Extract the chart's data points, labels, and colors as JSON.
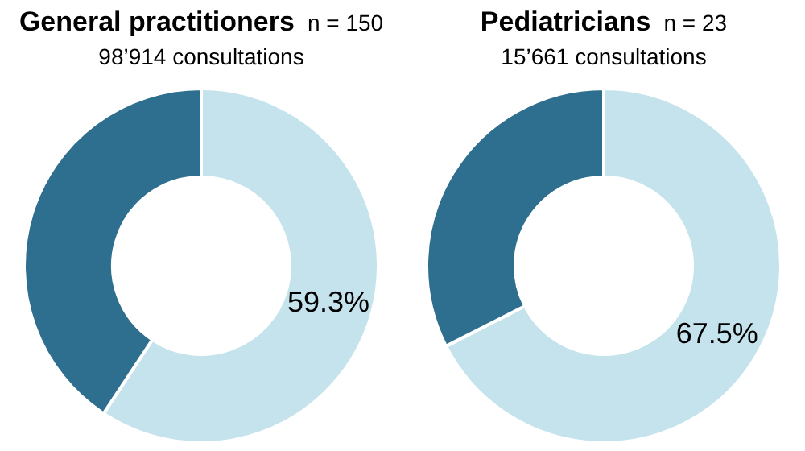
{
  "chart_data": [
    {
      "type": "donut",
      "title": "General practitioners",
      "subtitle": "n = 150",
      "annotations": [
        "98’914 consultations"
      ],
      "categories": [
        null,
        null
      ],
      "values": [
        59.3,
        40.7
      ],
      "colors": [
        "#c5e3ec",
        "#2e6e8e"
      ],
      "value_labels": [
        "59.3%",
        null
      ],
      "legend": false
    },
    {
      "type": "donut",
      "title": "Pediatricians",
      "subtitle": "n = 23",
      "annotations": [
        "15’661 consultations"
      ],
      "categories": [
        null,
        null
      ],
      "values": [
        67.5,
        32.5
      ],
      "colors": [
        "#c5e3ec",
        "#2e6e8e"
      ],
      "value_labels": [
        "67.5%",
        null
      ],
      "legend": false
    }
  ]
}
